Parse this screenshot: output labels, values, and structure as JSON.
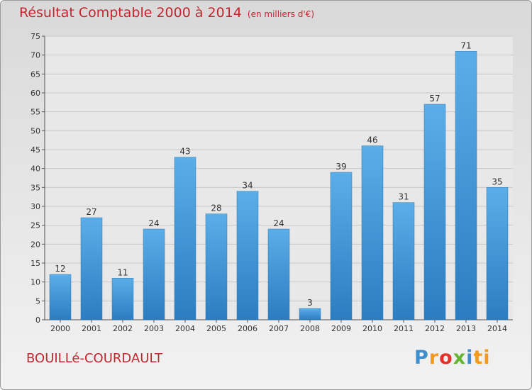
{
  "chart_data": {
    "type": "bar",
    "title": "Résultat Comptable 2000 à 2014",
    "subtitle": "(en milliers d'€)",
    "categories": [
      "2000",
      "2001",
      "2002",
      "2003",
      "2004",
      "2005",
      "2006",
      "2007",
      "2008",
      "2009",
      "2010",
      "2011",
      "2012",
      "2013",
      "2014"
    ],
    "values": [
      12,
      27,
      11,
      24,
      43,
      28,
      34,
      24,
      3,
      39,
      46,
      31,
      57,
      71,
      35
    ],
    "ylim": [
      0,
      75
    ],
    "yticks": [
      0,
      5,
      10,
      15,
      20,
      25,
      30,
      35,
      40,
      45,
      50,
      55,
      60,
      65,
      70,
      75
    ],
    "grid": true,
    "bar_color": "#4a9ee0",
    "title_color": "#c1272d"
  },
  "commune": "BOUILLé-COURDAULT",
  "logo": {
    "p1": "P",
    "p2": "r",
    "p3": "o",
    "p4": "x",
    "p5": "i",
    "p6": "ti"
  }
}
